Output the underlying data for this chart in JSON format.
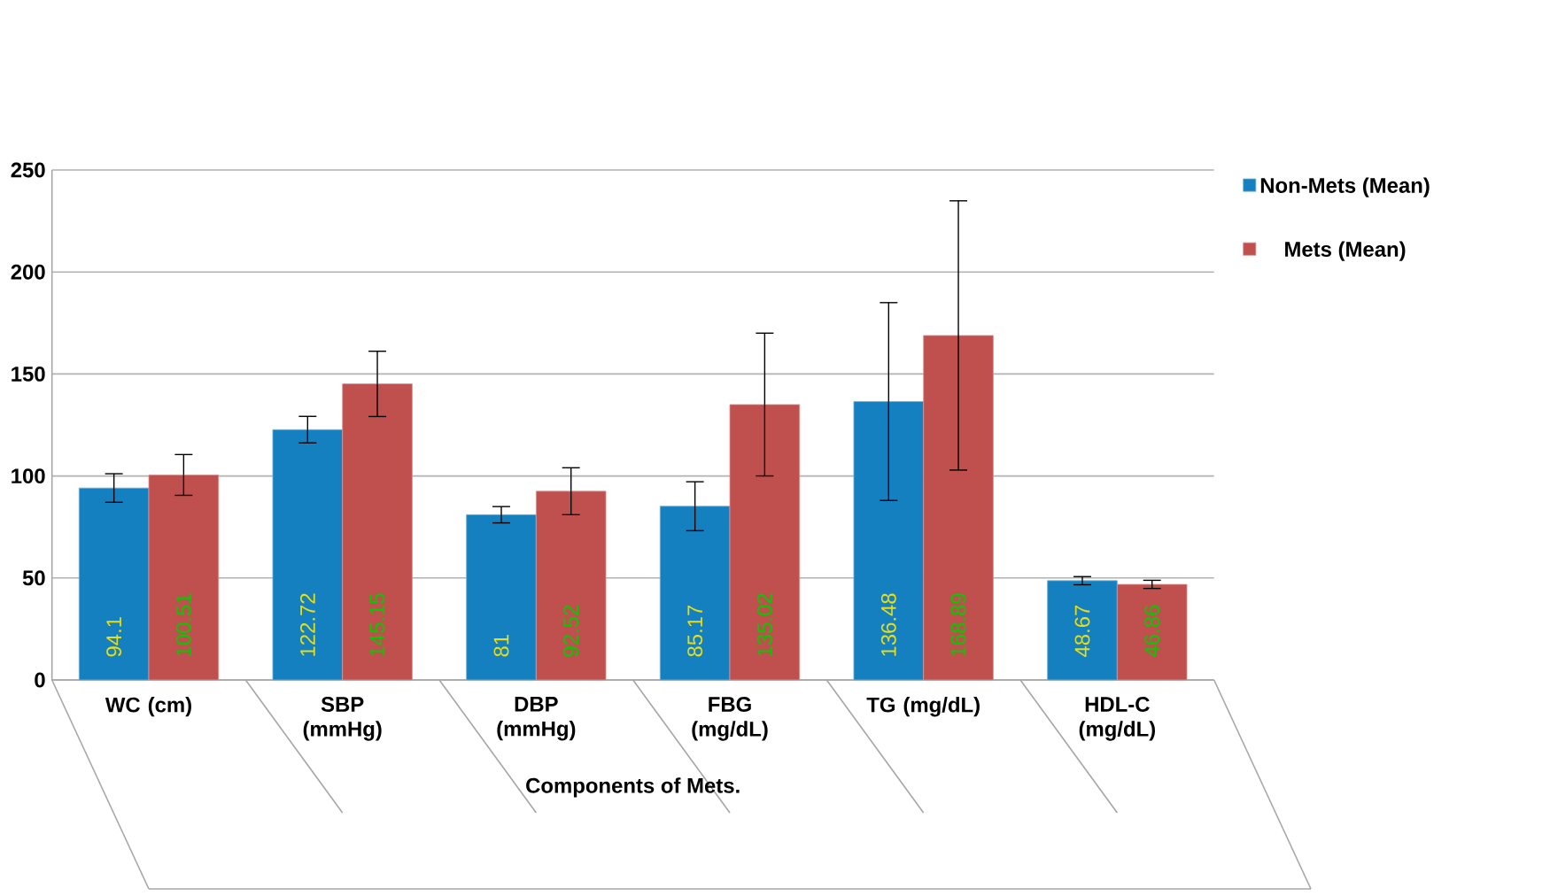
{
  "chart_data": {
    "type": "bar",
    "xlabel": "Components of Mets.",
    "categories": [
      "WC (cm)",
      "SBP (mmHg)",
      "DBP (mmHg)",
      "FBG (mg/dL)",
      "TG (mg/dL)",
      "HDL-C (mg/dL)"
    ],
    "series": [
      {
        "name": "Non-Mets (Mean)",
        "color": "#1580c0",
        "values": [
          94.1,
          122.72,
          81,
          85.17,
          136.48,
          48.67
        ],
        "errors": [
          7,
          6.5,
          4,
          12,
          48.5,
          2
        ]
      },
      {
        "name": "Mets (Mean)",
        "color": "#c0504d",
        "values": [
          100.51,
          145.15,
          92.52,
          135.02,
          168.89,
          46.86
        ],
        "errors": [
          10,
          16,
          11.5,
          35,
          66,
          2
        ]
      }
    ],
    "ylim": [
      0,
      250
    ],
    "yticks": [
      0,
      50,
      100,
      150,
      200,
      250
    ],
    "grid": "y",
    "legend": "top right",
    "data_labels": true
  }
}
